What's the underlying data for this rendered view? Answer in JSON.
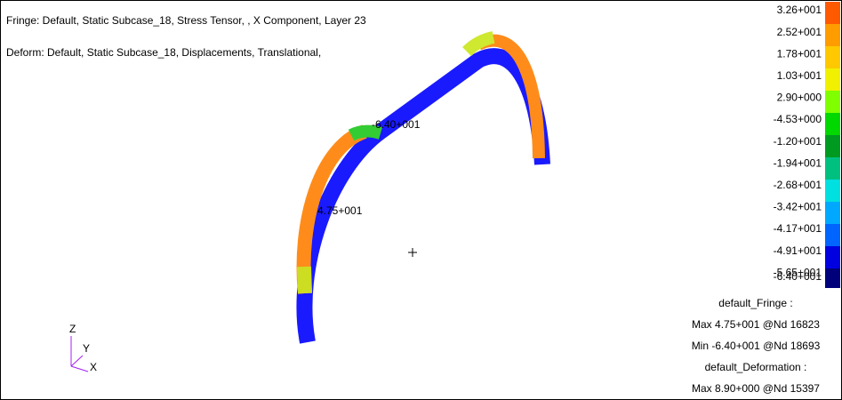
{
  "header": {
    "fringe": "Fringe: Default, Static Subcase_18, Stress Tensor, , X Component, Layer 23",
    "deform": "Deform: Default, Static Subcase_18, Displacements, Translational,"
  },
  "legend": {
    "labels": [
      "3.26+001",
      "2.52+001",
      "1.78+001",
      "1.03+001",
      "2.90+000",
      "-4.53+000",
      "-1.20+001",
      "-1.94+001",
      "-2.68+001",
      "-3.42+001",
      "-4.17+001",
      "-4.91+001",
      "-5.65+001",
      "-6.40+001"
    ]
  },
  "annotations": {
    "min": "-6.40+001",
    "max": "4.75+001"
  },
  "info": [
    "default_Fringe :",
    "Max 4.75+001 @Nd 16823",
    "Min -6.40+001 @Nd 18693",
    "default_Deformation :",
    "Max 8.90+000 @Nd 15397"
  ],
  "triad": {
    "z": "Z",
    "y": "Y",
    "x": "X"
  }
}
